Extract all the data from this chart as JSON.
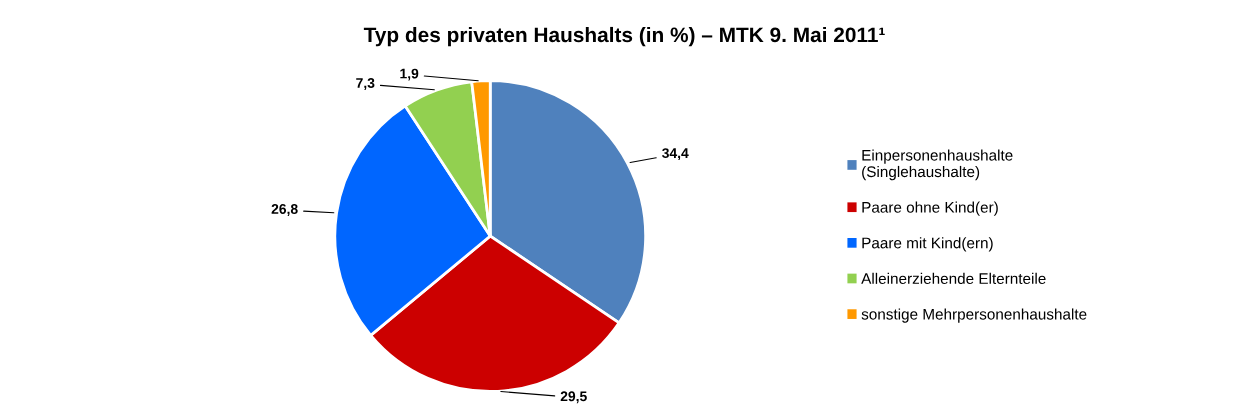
{
  "chart_data": {
    "type": "pie",
    "title": "Typ des privaten Haushalts (in %) – MTK 9. Mai 2011¹",
    "categories": [
      "Einpersonenhaushalte\n(Singlehaushalte)",
      "Paare ohne Kind(er)",
      "Paare mit Kind(ern)",
      "Alleinerziehende Elternteile",
      "sonstige Mehrpersonenhaushalte"
    ],
    "values": [
      34.4,
      29.5,
      26.8,
      7.3,
      1.9
    ],
    "colors": [
      "#4f81bd",
      "#cc0000",
      "#0066ff",
      "#92d050",
      "#ff9900"
    ],
    "value_labels": [
      "34,4",
      "29,5",
      "26,8",
      "7,3",
      "1,9"
    ],
    "legend": "right"
  }
}
